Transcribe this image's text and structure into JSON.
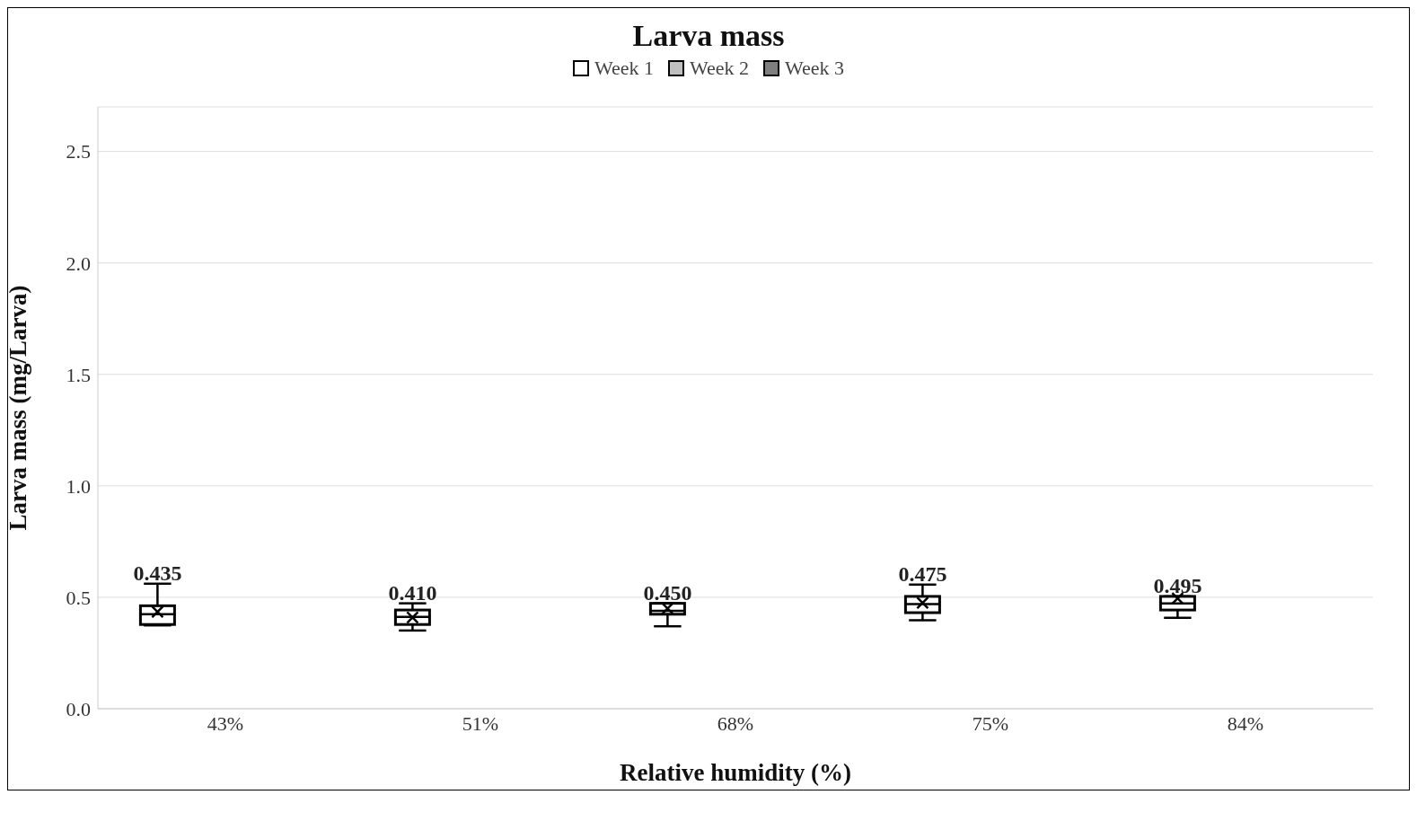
{
  "chart_data": {
    "type": "box",
    "title": "Larva mass",
    "xlabel": "Relative humidity (%)",
    "ylabel": "Larva mass (mg/Larva)",
    "categories": [
      "43%",
      "51%",
      "68%",
      "75%",
      "84%"
    ],
    "series": [
      {
        "name": "Week 1",
        "color": "#ffffff",
        "boxes": [
          {
            "low": 0.374,
            "q1": 0.378,
            "median": 0.424,
            "q3": 0.462,
            "high": 0.561,
            "mean": 0.435
          },
          {
            "low": 0.351,
            "q1": 0.378,
            "median": 0.412,
            "q3": 0.443,
            "high": 0.473,
            "mean": 0.41
          },
          {
            "low": 0.37,
            "q1": 0.424,
            "median": 0.439,
            "q3": 0.473,
            "high": 0.473,
            "mean": 0.45
          },
          {
            "low": 0.397,
            "q1": 0.431,
            "median": 0.469,
            "q3": 0.504,
            "high": 0.557,
            "mean": 0.475
          },
          {
            "low": 0.408,
            "q1": 0.443,
            "median": 0.473,
            "q3": 0.504,
            "high": 0.504,
            "mean": 0.495
          }
        ]
      },
      {
        "name": "Week 2",
        "color": "#bfbfbf",
        "boxes": [
          null,
          null,
          null,
          null,
          null
        ]
      },
      {
        "name": "Week 3",
        "color": "#7f7f7f",
        "boxes": [
          null,
          null,
          null,
          null,
          null
        ]
      }
    ],
    "annotations": [
      "0.435",
      "0.410",
      "0.450",
      "0.475",
      "0.495"
    ],
    "ylim": [
      0,
      2.7
    ],
    "yticks": [
      {
        "value": 0,
        "label": "0.0"
      },
      {
        "value": 0.5,
        "label": "0.5"
      },
      {
        "value": 1,
        "label": "1.0"
      },
      {
        "value": 1.5,
        "label": "1.5"
      },
      {
        "value": 2,
        "label": "2.0"
      },
      {
        "value": 2.5,
        "label": "2.5"
      }
    ],
    "grid": "y",
    "legend": "top"
  }
}
